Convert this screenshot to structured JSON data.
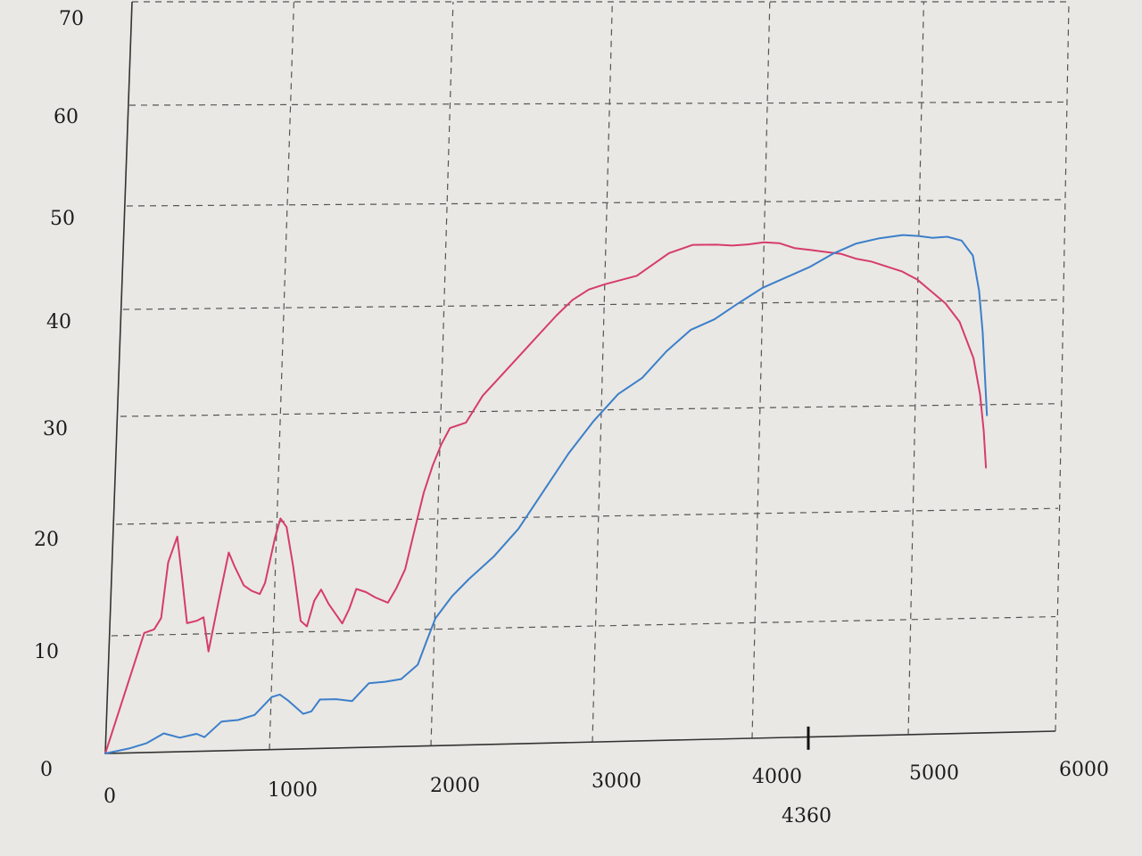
{
  "chart_data": {
    "type": "line",
    "title": "",
    "xlabel": "",
    "ylabel": "",
    "xlim": [
      0,
      6000
    ],
    "ylim": [
      0,
      70
    ],
    "x_ticks": [
      "0",
      "1000",
      "2000",
      "3000",
      "4000",
      "5000",
      "6000"
    ],
    "y_ticks": [
      "0",
      "10",
      "20",
      "30",
      "40",
      "50",
      "60",
      "70"
    ],
    "grid": true,
    "marker": {
      "x": 4360,
      "label": "4360"
    },
    "series": [
      {
        "color": "#d63c6b",
        "points": [
          [
            0,
            0
          ],
          [
            200,
            10.2
          ],
          [
            260,
            10.5
          ],
          [
            300,
            11.5
          ],
          [
            330,
            16.5
          ],
          [
            380,
            18.8
          ],
          [
            420,
            15
          ],
          [
            460,
            11
          ],
          [
            520,
            11.2
          ],
          [
            560,
            11.5
          ],
          [
            600,
            8.5
          ],
          [
            650,
            13
          ],
          [
            700,
            17.3
          ],
          [
            740,
            16
          ],
          [
            800,
            14.3
          ],
          [
            850,
            13.8
          ],
          [
            900,
            13.5
          ],
          [
            930,
            14.5
          ],
          [
            980,
            18.5
          ],
          [
            1010,
            20.3
          ],
          [
            1050,
            19.5
          ],
          [
            1100,
            16
          ],
          [
            1160,
            11
          ],
          [
            1200,
            10.5
          ],
          [
            1240,
            12.8
          ],
          [
            1280,
            13.8
          ],
          [
            1330,
            12.5
          ],
          [
            1380,
            11.5
          ],
          [
            1420,
            10.7
          ],
          [
            1460,
            12
          ],
          [
            1500,
            13.8
          ],
          [
            1560,
            13.5
          ],
          [
            1620,
            13
          ],
          [
            1700,
            12.5
          ],
          [
            1750,
            13.8
          ],
          [
            1800,
            15.5
          ],
          [
            1850,
            19
          ],
          [
            1900,
            22.5
          ],
          [
            1950,
            25
          ],
          [
            2000,
            27
          ],
          [
            2050,
            28.5
          ],
          [
            2150,
            29
          ],
          [
            2250,
            31.5
          ],
          [
            2400,
            34
          ],
          [
            2550,
            36.5
          ],
          [
            2700,
            39
          ],
          [
            2800,
            40.5
          ],
          [
            2900,
            41.5
          ],
          [
            3000,
            42
          ],
          [
            3200,
            42.8
          ],
          [
            3400,
            45
          ],
          [
            3550,
            45.8
          ],
          [
            3700,
            45.8
          ],
          [
            3800,
            45.7
          ],
          [
            3900,
            45.8
          ],
          [
            4000,
            46
          ],
          [
            4100,
            45.9
          ],
          [
            4200,
            45.4
          ],
          [
            4300,
            45.2
          ],
          [
            4400,
            45
          ],
          [
            4500,
            44.8
          ],
          [
            4600,
            44.3
          ],
          [
            4700,
            44
          ],
          [
            4800,
            43.5
          ],
          [
            4900,
            43
          ],
          [
            5000,
            42.2
          ],
          [
            5100,
            41
          ],
          [
            5200,
            39.8
          ],
          [
            5300,
            38
          ],
          [
            5400,
            34.5
          ],
          [
            5450,
            31
          ],
          [
            5480,
            27.5
          ],
          [
            5500,
            24
          ]
        ]
      },
      {
        "color": "#3c7fca",
        "points": [
          [
            0,
            0
          ],
          [
            150,
            0.4
          ],
          [
            250,
            0.8
          ],
          [
            350,
            1.6
          ],
          [
            450,
            1.2
          ],
          [
            550,
            1.5
          ],
          [
            600,
            1.2
          ],
          [
            700,
            2.5
          ],
          [
            800,
            2.6
          ],
          [
            900,
            3
          ],
          [
            1000,
            4.5
          ],
          [
            1050,
            4.7
          ],
          [
            1100,
            4.2
          ],
          [
            1200,
            3
          ],
          [
            1250,
            3.2
          ],
          [
            1300,
            4.2
          ],
          [
            1400,
            4.2
          ],
          [
            1500,
            4
          ],
          [
            1600,
            5.5
          ],
          [
            1700,
            5.6
          ],
          [
            1800,
            5.8
          ],
          [
            1900,
            7
          ],
          [
            1950,
            9
          ],
          [
            2000,
            11
          ],
          [
            2100,
            13
          ],
          [
            2200,
            14.5
          ],
          [
            2350,
            16.5
          ],
          [
            2500,
            19
          ],
          [
            2650,
            22.5
          ],
          [
            2800,
            26
          ],
          [
            2950,
            29
          ],
          [
            3100,
            31.5
          ],
          [
            3250,
            33
          ],
          [
            3400,
            35.5
          ],
          [
            3550,
            37.5
          ],
          [
            3700,
            38.5
          ],
          [
            3850,
            40
          ],
          [
            4000,
            41.5
          ],
          [
            4150,
            42.5
          ],
          [
            4300,
            43.5
          ],
          [
            4450,
            44.8
          ],
          [
            4600,
            45.8
          ],
          [
            4750,
            46.3
          ],
          [
            4900,
            46.6
          ],
          [
            5000,
            46.5
          ],
          [
            5100,
            46.3
          ],
          [
            5200,
            46.4
          ],
          [
            5300,
            46
          ],
          [
            5380,
            44.5
          ],
          [
            5430,
            41
          ],
          [
            5460,
            37
          ],
          [
            5480,
            33
          ],
          [
            5500,
            29
          ]
        ]
      }
    ]
  }
}
